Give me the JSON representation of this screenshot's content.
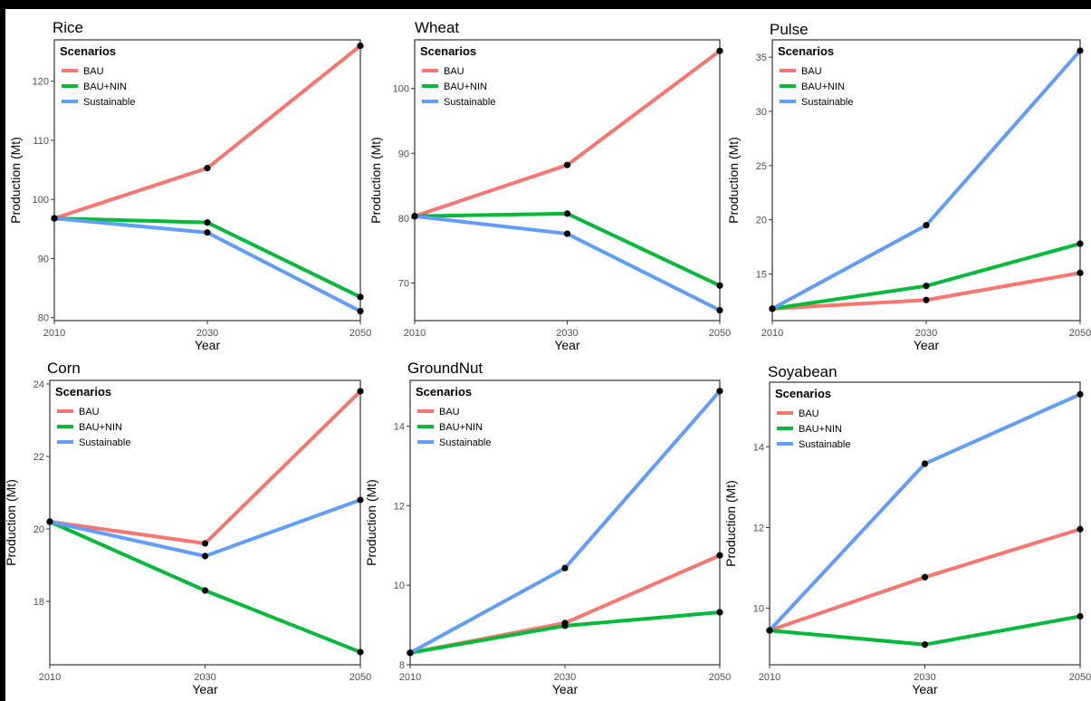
{
  "colors": {
    "BAU": "#f8766d",
    "BAU+NIN": "#00ba38",
    "Sustainable": "#619cff"
  },
  "chart_data": [
    {
      "type": "line",
      "title": "Rice",
      "xlabel": "Year",
      "ylabel": "Production (Mt)",
      "x": [
        2010,
        2030,
        2050
      ],
      "ylim": [
        79.5,
        127
      ],
      "yticks": [
        80,
        90,
        100,
        110,
        120
      ],
      "legend_title": "Scenarios",
      "legend_position": "top-left",
      "series": [
        {
          "name": "BAU",
          "values": [
            96.8,
            105.3,
            126.0
          ]
        },
        {
          "name": "BAU+NIN",
          "values": [
            96.8,
            96.1,
            83.5
          ]
        },
        {
          "name": "Sustainable",
          "values": [
            96.8,
            94.4,
            81.1
          ]
        }
      ]
    },
    {
      "type": "line",
      "title": "Wheat",
      "xlabel": "Year",
      "ylabel": "Production (Mt)",
      "x": [
        2010,
        2030,
        2050
      ],
      "ylim": [
        64.2,
        107.5
      ],
      "yticks": [
        70,
        80,
        90,
        100
      ],
      "legend_title": "Scenarios",
      "legend_position": "top-left",
      "series": [
        {
          "name": "BAU",
          "values": [
            80.3,
            88.2,
            105.8
          ]
        },
        {
          "name": "BAU+NIN",
          "values": [
            80.3,
            80.7,
            69.6
          ]
        },
        {
          "name": "Sustainable",
          "values": [
            80.3,
            77.6,
            65.8
          ]
        }
      ]
    },
    {
      "type": "line",
      "title": "Pulse",
      "xlabel": "Year",
      "ylabel": "Production (Mt)",
      "x": [
        2010,
        2030,
        2050
      ],
      "ylim": [
        10.7,
        36.6
      ],
      "yticks": [
        15,
        20,
        25,
        30,
        35
      ],
      "legend_title": "Scenarios",
      "legend_position": "top-left",
      "series": [
        {
          "name": "BAU",
          "values": [
            11.8,
            12.6,
            15.1
          ]
        },
        {
          "name": "BAU+NIN",
          "values": [
            11.8,
            13.9,
            17.8
          ]
        },
        {
          "name": "Sustainable",
          "values": [
            11.8,
            19.5,
            35.6
          ]
        }
      ]
    },
    {
      "type": "line",
      "title": "Corn",
      "xlabel": "Year",
      "ylabel": "Production (Mt)",
      "x": [
        2010,
        2030,
        2050
      ],
      "ylim": [
        16.25,
        24.1
      ],
      "yticks": [
        18,
        20,
        22,
        24
      ],
      "legend_title": "Scenarios",
      "legend_position": "top-left",
      "series": [
        {
          "name": "BAU",
          "values": [
            20.2,
            19.6,
            23.8
          ]
        },
        {
          "name": "BAU+NIN",
          "values": [
            20.2,
            18.3,
            16.6
          ]
        },
        {
          "name": "Sustainable",
          "values": [
            20.2,
            19.25,
            20.8
          ]
        }
      ]
    },
    {
      "type": "line",
      "title": "GroundNut",
      "xlabel": "Year",
      "ylabel": "Production (Mt)",
      "x": [
        2010,
        2030,
        2050
      ],
      "ylim": [
        8.0,
        15.15
      ],
      "yticks": [
        8,
        10,
        12,
        14
      ],
      "legend_title": "Scenarios",
      "legend_position": "top-left",
      "series": [
        {
          "name": "BAU",
          "values": [
            8.3,
            9.05,
            10.75
          ]
        },
        {
          "name": "BAU+NIN",
          "values": [
            8.3,
            8.98,
            9.32
          ]
        },
        {
          "name": "Sustainable",
          "values": [
            8.3,
            10.43,
            14.88
          ]
        }
      ]
    },
    {
      "type": "line",
      "title": "Soyabean",
      "xlabel": "Year",
      "ylabel": "Production (Mt)",
      "x": [
        2010,
        2030,
        2050
      ],
      "ylim": [
        8.6,
        15.6
      ],
      "yticks": [
        10,
        12,
        14
      ],
      "legend_title": "Scenarios",
      "legend_position": "top-left",
      "series": [
        {
          "name": "BAU",
          "values": [
            9.45,
            10.77,
            11.96
          ]
        },
        {
          "name": "BAU+NIN",
          "values": [
            9.45,
            9.1,
            9.8
          ]
        },
        {
          "name": "Sustainable",
          "values": [
            9.45,
            13.58,
            15.3
          ]
        }
      ]
    }
  ]
}
